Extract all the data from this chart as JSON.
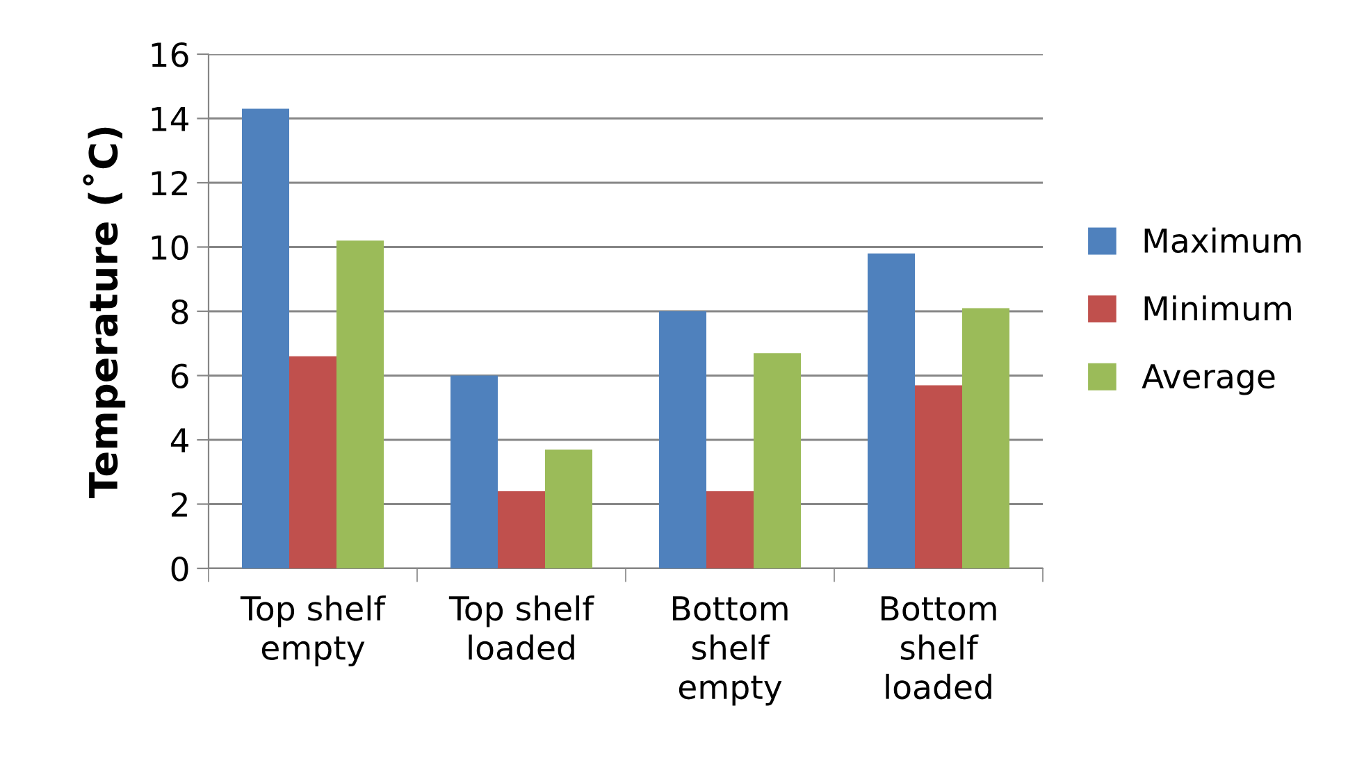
{
  "chart_data": {
    "type": "bar",
    "ylabel": "Temperature (˚C)",
    "categories": [
      "Top shelf\nempty",
      "Top shelf\nloaded",
      "Bottom\nshelf\nempty",
      "Bottom\nshelf\nloaded"
    ],
    "series": [
      {
        "name": "Maximum",
        "color": "#4f81bd",
        "values": [
          14.3,
          6.0,
          8.0,
          9.8
        ]
      },
      {
        "name": "Minimum",
        "color": "#c0504d",
        "values": [
          6.6,
          2.4,
          2.4,
          5.7
        ]
      },
      {
        "name": "Average",
        "color": "#9bbb59",
        "values": [
          10.2,
          3.7,
          6.7,
          8.1
        ]
      }
    ],
    "ylim": [
      0,
      16
    ],
    "yticks": [
      0,
      2,
      4,
      6,
      8,
      10,
      12,
      14,
      16
    ],
    "grid": "y",
    "legend": "right"
  }
}
